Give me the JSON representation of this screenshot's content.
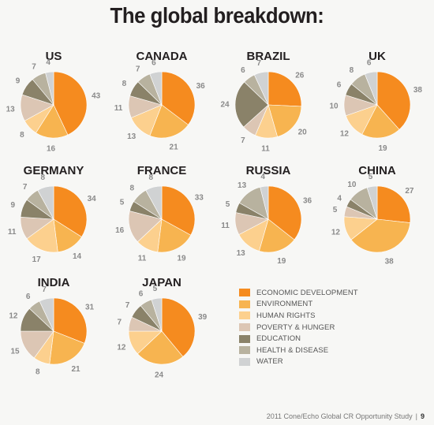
{
  "title": "The global breakdown:",
  "footer": {
    "text": "2011 Cone/Echo Global CR Opportunity Study",
    "separator": "|",
    "page": "9"
  },
  "legend": [
    {
      "label": "ECONOMIC DEVELOPMENT",
      "color": "#f58b1f"
    },
    {
      "label": "ENVIRONMENT",
      "color": "#f7b450"
    },
    {
      "label": "HUMAN RIGHTS",
      "color": "#fcd08e"
    },
    {
      "label": "POVERTY & HUNGER",
      "color": "#dcc6b4"
    },
    {
      "label": "EDUCATION",
      "color": "#8a8269"
    },
    {
      "label": "HEALTH & DISEASE",
      "color": "#b8b29f"
    },
    {
      "label": "WATER",
      "color": "#d0d2d3"
    }
  ],
  "chart_data": {
    "type": "pie",
    "categories": [
      "ECONOMIC DEVELOPMENT",
      "ENVIRONMENT",
      "HUMAN RIGHTS",
      "POVERTY & HUNGER",
      "EDUCATION",
      "HEALTH & DISEASE",
      "WATER"
    ],
    "charts": [
      {
        "country": "US",
        "values": [
          43,
          16,
          8,
          13,
          9,
          7,
          4
        ]
      },
      {
        "country": "CANADA",
        "values": [
          36,
          21,
          13,
          11,
          8,
          7,
          6
        ]
      },
      {
        "country": "BRAZIL",
        "values": [
          26,
          20,
          11,
          7,
          24,
          6,
          7
        ]
      },
      {
        "country": "UK",
        "values": [
          38,
          19,
          12,
          10,
          6,
          8,
          6
        ]
      },
      {
        "country": "GERMANY",
        "values": [
          34,
          14,
          17,
          11,
          9,
          7,
          8
        ]
      },
      {
        "country": "FRANCE",
        "values": [
          33,
          19,
          11,
          16,
          5,
          8,
          8
        ]
      },
      {
        "country": "RUSSIA",
        "values": [
          36,
          19,
          13,
          11,
          5,
          13,
          4
        ]
      },
      {
        "country": "CHINA",
        "values": [
          27,
          38,
          12,
          5,
          4,
          10,
          5
        ]
      },
      {
        "country": "INDIA",
        "values": [
          31,
          21,
          8,
          15,
          12,
          6,
          7
        ]
      },
      {
        "country": "JAPAN",
        "values": [
          39,
          24,
          12,
          7,
          7,
          6,
          5
        ]
      }
    ]
  }
}
